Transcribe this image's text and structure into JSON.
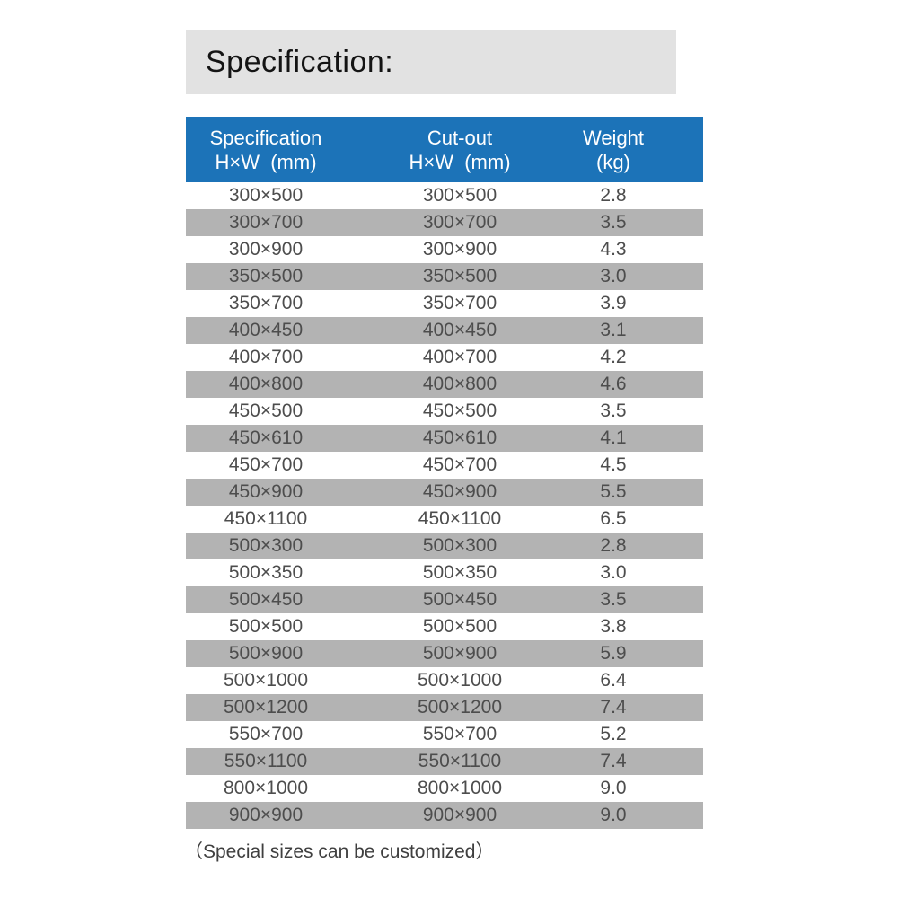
{
  "title": "Specification:",
  "table": {
    "header": [
      {
        "line1": "Specification",
        "line2": "H×W  (mm)"
      },
      {
        "line1": "Cut-out",
        "line2": "H×W  (mm)"
      },
      {
        "line1": "Weight",
        "line2": "(kg)"
      }
    ],
    "rows": [
      {
        "spec": "300×500",
        "cutout": "300×500",
        "weight": "2.8"
      },
      {
        "spec": "300×700",
        "cutout": "300×700",
        "weight": "3.5"
      },
      {
        "spec": "300×900",
        "cutout": "300×900",
        "weight": "4.3"
      },
      {
        "spec": "350×500",
        "cutout": "350×500",
        "weight": "3.0"
      },
      {
        "spec": "350×700",
        "cutout": "350×700",
        "weight": "3.9"
      },
      {
        "spec": "400×450",
        "cutout": "400×450",
        "weight": "3.1"
      },
      {
        "spec": "400×700",
        "cutout": "400×700",
        "weight": "4.2"
      },
      {
        "spec": "400×800",
        "cutout": "400×800",
        "weight": "4.6"
      },
      {
        "spec": "450×500",
        "cutout": "450×500",
        "weight": "3.5"
      },
      {
        "spec": "450×610",
        "cutout": "450×610",
        "weight": "4.1"
      },
      {
        "spec": "450×700",
        "cutout": "450×700",
        "weight": "4.5"
      },
      {
        "spec": "450×900",
        "cutout": "450×900",
        "weight": "5.5"
      },
      {
        "spec": "450×1100",
        "cutout": "450×1100",
        "weight": "6.5"
      },
      {
        "spec": "500×300",
        "cutout": "500×300",
        "weight": "2.8"
      },
      {
        "spec": "500×350",
        "cutout": "500×350",
        "weight": "3.0"
      },
      {
        "spec": "500×450",
        "cutout": "500×450",
        "weight": "3.5"
      },
      {
        "spec": "500×500",
        "cutout": "500×500",
        "weight": "3.8"
      },
      {
        "spec": "500×900",
        "cutout": "500×900",
        "weight": "5.9"
      },
      {
        "spec": "500×1000",
        "cutout": "500×1000",
        "weight": "6.4"
      },
      {
        "spec": "500×1200",
        "cutout": "500×1200",
        "weight": "7.4"
      },
      {
        "spec": "550×700",
        "cutout": "550×700",
        "weight": "5.2"
      },
      {
        "spec": "550×1100",
        "cutout": "550×1100",
        "weight": "7.4"
      },
      {
        "spec": "800×1000",
        "cutout": "800×1000",
        "weight": "9.0"
      },
      {
        "spec": "900×900",
        "cutout": "900×900",
        "weight": "9.0"
      }
    ]
  },
  "footer_note": "（Special sizes can be customized）",
  "colors": {
    "header_bg": "#1c73b8",
    "stripe_bg": "#b3b3b3",
    "banner_bg": "#e2e2e2",
    "cell_text": "#4d4d4d",
    "header_text": "#ffffff",
    "title_text": "#141414",
    "footer_text": "#3f3f3f"
  }
}
